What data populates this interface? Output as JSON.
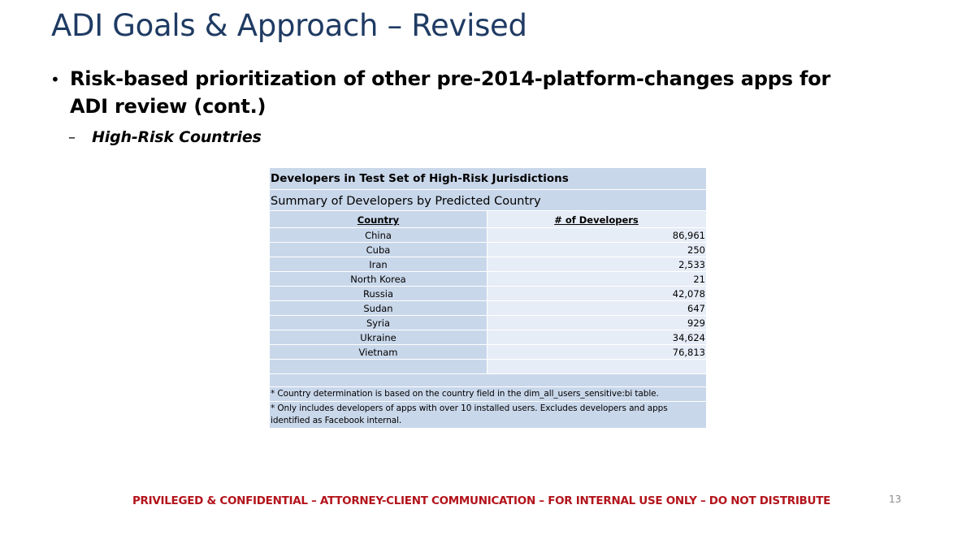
{
  "slide": {
    "title": "ADI Goals & Approach – Revised",
    "bullet_marker": "•",
    "bullet_text": "Risk-based prioritization of other pre-2014-platform-changes apps for ADI review (cont.)",
    "sub_marker": "–",
    "sub_text": "High-Risk Countries",
    "footer": "PRIVILEGED & CONFIDENTIAL – ATTORNEY-CLIENT COMMUNICATION – FOR INTERNAL USE ONLY – DO NOT DISTRIBUTE",
    "page_number": "13"
  },
  "table": {
    "title": "Developers in Test Set of High-Risk Jurisdictions",
    "subtitle": "Summary of Developers by Predicted Country",
    "columns": [
      "Country",
      "# of Developers"
    ],
    "rows": [
      {
        "country": "China",
        "developers": "86,961"
      },
      {
        "country": "Cuba",
        "developers": "250"
      },
      {
        "country": "Iran",
        "developers": "2,533"
      },
      {
        "country": "North Korea",
        "developers": "21"
      },
      {
        "country": "Russia",
        "developers": "42,078"
      },
      {
        "country": "Sudan",
        "developers": "647"
      },
      {
        "country": "Syria",
        "developers": "929"
      },
      {
        "country": "Ukraine",
        "developers": "34,624"
      },
      {
        "country": "Vietnam",
        "developers": "76,813"
      }
    ],
    "notes": [
      "* Country determination is based on the country field in the dim_all_users_sensitive:bi table.",
      "* Only includes developers of apps with over 10 installed users. Excludes developers and apps identified as Facebook internal."
    ]
  },
  "colors": {
    "title": "#1f3b63",
    "footer": "#b3141c",
    "table_dark": "#c9d7ea",
    "table_light": "#e7edf7"
  }
}
